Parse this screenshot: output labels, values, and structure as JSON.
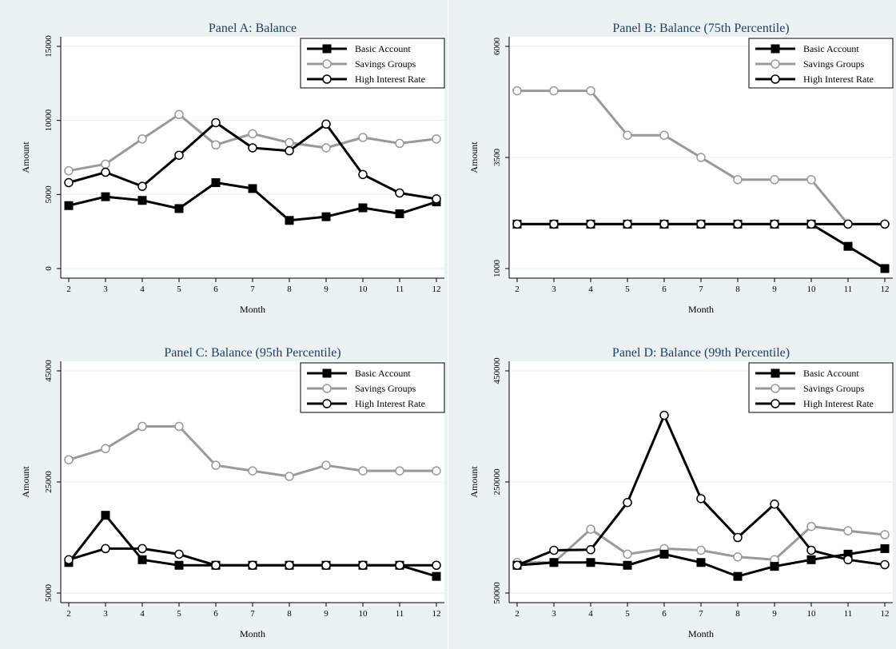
{
  "chart_data": [
    {
      "type": "line",
      "title": "Panel A: Balance",
      "xlabel": "Month",
      "ylabel": "Amount",
      "x": [
        2,
        3,
        4,
        5,
        6,
        7,
        8,
        9,
        10,
        11,
        12
      ],
      "ylim": [
        0,
        15000
      ],
      "yticks": [
        "0",
        "5000",
        "10000",
        "15000"
      ],
      "ytick_values": [
        0,
        5000,
        10000,
        15000
      ],
      "series": [
        {
          "name": "Basic Account",
          "values": [
            4250,
            4850,
            4600,
            4050,
            5800,
            5400,
            3250,
            3500,
            4100,
            3700,
            4500
          ]
        },
        {
          "name": "Savings Groups",
          "values": [
            6600,
            7050,
            8750,
            10400,
            8350,
            9100,
            8500,
            8150,
            8850,
            8450,
            8750
          ]
        },
        {
          "name": "High Interest Rate",
          "values": [
            5800,
            6500,
            5550,
            7650,
            9850,
            8150,
            7950,
            9750,
            6350,
            5100,
            4700
          ]
        }
      ],
      "legend_position": "top-right",
      "grid": true
    },
    {
      "type": "line",
      "title": "Panel B: Balance (75th Percentile)",
      "xlabel": "Month",
      "ylabel": "Amount",
      "x": [
        2,
        3,
        4,
        5,
        6,
        7,
        8,
        9,
        10,
        11,
        12
      ],
      "ylim": [
        1000,
        6000
      ],
      "yticks": [
        "1000",
        "3500",
        "6000"
      ],
      "ytick_values": [
        1000,
        3500,
        6000
      ],
      "series": [
        {
          "name": "Basic Account",
          "values": [
            2000,
            2000,
            2000,
            2000,
            2000,
            2000,
            2000,
            2000,
            2000,
            1500,
            1000
          ]
        },
        {
          "name": "Savings Groups",
          "values": [
            5000,
            5000,
            5000,
            4000,
            4000,
            3500,
            3000,
            3000,
            3000,
            2000,
            2000
          ]
        },
        {
          "name": "High Interest Rate",
          "values": [
            2000,
            2000,
            2000,
            2000,
            2000,
            2000,
            2000,
            2000,
            2000,
            2000,
            2000
          ]
        }
      ],
      "legend_position": "top-right",
      "grid": true
    },
    {
      "type": "line",
      "title": "Panel C: Balance (95th Percentile)",
      "xlabel": "Month",
      "ylabel": "Amount",
      "x": [
        2,
        3,
        4,
        5,
        6,
        7,
        8,
        9,
        10,
        11,
        12
      ],
      "ylim": [
        5000,
        45000
      ],
      "yticks": [
        "5000",
        "25000",
        "45000"
      ],
      "ytick_values": [
        5000,
        25000,
        45000
      ],
      "series": [
        {
          "name": "Basic Account",
          "values": [
            10500,
            19000,
            11000,
            10000,
            10000,
            10000,
            10000,
            10000,
            10000,
            10000,
            8000
          ]
        },
        {
          "name": "Savings Groups",
          "values": [
            29000,
            31000,
            35000,
            35000,
            28000,
            27000,
            26000,
            28000,
            27000,
            27000,
            27000
          ]
        },
        {
          "name": "High Interest Rate",
          "values": [
            11000,
            13000,
            13000,
            12000,
            10000,
            10000,
            10000,
            10000,
            10000,
            10000,
            10000
          ]
        }
      ],
      "legend_position": "top-right",
      "grid": true
    },
    {
      "type": "line",
      "title": "Panel D: Balance (99th Percentile)",
      "xlabel": "Month",
      "ylabel": "Amount",
      "x": [
        2,
        3,
        4,
        5,
        6,
        7,
        8,
        9,
        10,
        11,
        12
      ],
      "ylim": [
        50000,
        450000
      ],
      "yticks": [
        "50000",
        "250000",
        "450000"
      ],
      "ytick_values": [
        50000,
        250000,
        450000
      ],
      "series": [
        {
          "name": "Basic Account",
          "values": [
            100000,
            105000,
            105000,
            100000,
            120000,
            105000,
            80000,
            98000,
            110000,
            120000,
            130000
          ]
        },
        {
          "name": "Savings Groups",
          "values": [
            105000,
            105000,
            165000,
            120000,
            130000,
            127000,
            115000,
            110000,
            170000,
            162000,
            155000
          ]
        },
        {
          "name": "High Interest Rate",
          "values": [
            100000,
            127000,
            128000,
            213000,
            370000,
            220000,
            150000,
            210000,
            127000,
            110000,
            101000
          ]
        }
      ],
      "legend_position": "top-right",
      "grid": true
    }
  ],
  "style": {
    "basic_color": "#000000",
    "savings_color": "#999999",
    "high_color": "#000000",
    "grid_color": "#e7eef0",
    "title_color": "#1f3f66",
    "panel_bg": "#eaf2f3",
    "plot_bg": "#ffffff"
  }
}
